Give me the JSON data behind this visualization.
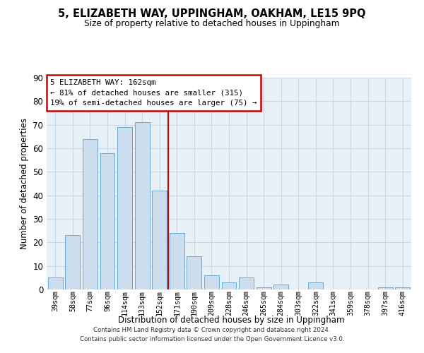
{
  "title": "5, ELIZABETH WAY, UPPINGHAM, OAKHAM, LE15 9PQ",
  "subtitle": "Size of property relative to detached houses in Uppingham",
  "xlabel": "Distribution of detached houses by size in Uppingham",
  "ylabel": "Number of detached properties",
  "categories": [
    "39sqm",
    "58sqm",
    "77sqm",
    "96sqm",
    "114sqm",
    "133sqm",
    "152sqm",
    "171sqm",
    "190sqm",
    "209sqm",
    "228sqm",
    "246sqm",
    "265sqm",
    "284sqm",
    "303sqm",
    "322sqm",
    "341sqm",
    "359sqm",
    "378sqm",
    "397sqm",
    "416sqm"
  ],
  "values": [
    5,
    23,
    64,
    58,
    69,
    71,
    42,
    24,
    14,
    6,
    3,
    5,
    1,
    2,
    0,
    3,
    0,
    0,
    0,
    1,
    1
  ],
  "bar_color": "#ccdded",
  "bar_edge_color": "#6aaad4",
  "grid_color": "#c8d8e8",
  "background_color": "#e8f0f8",
  "vline_x": 6.5,
  "vline_color": "#cc0000",
  "annotation_title": "5 ELIZABETH WAY: 162sqm",
  "annotation_line1": "← 81% of detached houses are smaller (315)",
  "annotation_line2": "19% of semi-detached houses are larger (75) →",
  "annotation_box_color": "#cc0000",
  "footer_line1": "Contains HM Land Registry data © Crown copyright and database right 2024.",
  "footer_line2": "Contains public sector information licensed under the Open Government Licence v3.0.",
  "ylim": [
    0,
    90
  ],
  "yticks": [
    0,
    10,
    20,
    30,
    40,
    50,
    60,
    70,
    80,
    90
  ]
}
